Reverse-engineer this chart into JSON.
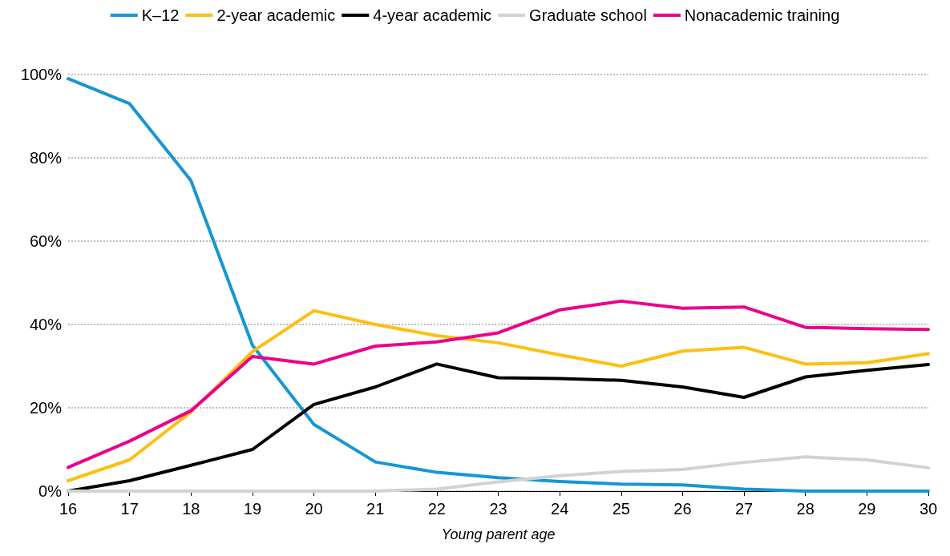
{
  "chart_data": {
    "type": "line",
    "xlabel": "Young parent age",
    "x": [
      16,
      17,
      18,
      19,
      20,
      21,
      22,
      23,
      24,
      25,
      26,
      27,
      28,
      29,
      30
    ],
    "series": [
      {
        "name": "K–12",
        "color": "#1696d2",
        "values": [
          99,
          93,
          74.5,
          35,
          16,
          7,
          4.5,
          3.2,
          2.3,
          1.7,
          1.5,
          0.5,
          0,
          0,
          0
        ]
      },
      {
        "name": "2-year academic",
        "color": "#fdbf11",
        "values": [
          2.5,
          7.5,
          19,
          33.5,
          43.3,
          40,
          37.3,
          35.6,
          32.7,
          30,
          33.6,
          34.5,
          30.5,
          30.8,
          33
        ]
      },
      {
        "name": "4-year academic",
        "color": "#000000",
        "values": [
          0,
          2.5,
          6.2,
          10,
          20.8,
          25,
          30.5,
          27.2,
          27,
          26.6,
          25,
          22.5,
          27.4,
          29,
          30.4
        ]
      },
      {
        "name": "Graduate school",
        "color": "#d2d2d2",
        "values": [
          0,
          0,
          0,
          0,
          0,
          0,
          0.5,
          2.2,
          3.7,
          4.7,
          5.2,
          6.9,
          8.2,
          7.5,
          5.6
        ]
      },
      {
        "name": "Nonacademic training",
        "color": "#ec008b",
        "values": [
          5.7,
          12,
          19.3,
          32.3,
          30.5,
          34.8,
          35.8,
          38,
          43.5,
          45.6,
          43.9,
          44.2,
          39.3,
          39,
          38.8
        ]
      }
    ],
    "xlim": [
      16,
      30
    ],
    "xticks": [
      16,
      17,
      18,
      19,
      20,
      21,
      22,
      23,
      24,
      25,
      26,
      27,
      28,
      29,
      30
    ],
    "ylim": [
      0,
      100
    ],
    "yticks": [
      {
        "value": 0,
        "label": "0%"
      },
      {
        "value": 20,
        "label": "20%"
      },
      {
        "value": 40,
        "label": "40%"
      },
      {
        "value": 60,
        "label": "60%"
      },
      {
        "value": 80,
        "label": "80%"
      },
      {
        "value": 100,
        "label": "100%"
      }
    ],
    "grid": "y",
    "legend": "top",
    "marker": "none",
    "line_style": "solid"
  }
}
